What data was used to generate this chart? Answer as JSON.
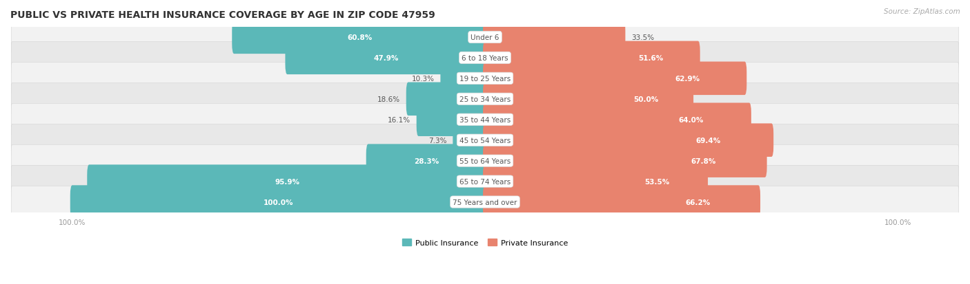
{
  "title": "PUBLIC VS PRIVATE HEALTH INSURANCE COVERAGE BY AGE IN ZIP CODE 47959",
  "source": "Source: ZipAtlas.com",
  "categories": [
    "Under 6",
    "6 to 18 Years",
    "19 to 25 Years",
    "25 to 34 Years",
    "35 to 44 Years",
    "45 to 54 Years",
    "55 to 64 Years",
    "65 to 74 Years",
    "75 Years and over"
  ],
  "public_values": [
    60.8,
    47.9,
    10.3,
    18.6,
    16.1,
    7.3,
    28.3,
    95.9,
    100.0
  ],
  "private_values": [
    33.5,
    51.6,
    62.9,
    50.0,
    64.0,
    69.4,
    67.8,
    53.5,
    66.2
  ],
  "public_color": "#5BB8B8",
  "private_color": "#E8836E",
  "row_bg_light": "#F2F2F2",
  "row_bg_dark": "#E8E8E8",
  "title_color": "#333333",
  "center_label_color": "#555555",
  "axis_label_color": "#999999",
  "dark_text": "#555555",
  "white_text": "#FFFFFF",
  "figsize": [
    14.06,
    4.14
  ],
  "dpi": 100,
  "pub_inside_threshold": 25,
  "priv_inside_threshold": 40
}
